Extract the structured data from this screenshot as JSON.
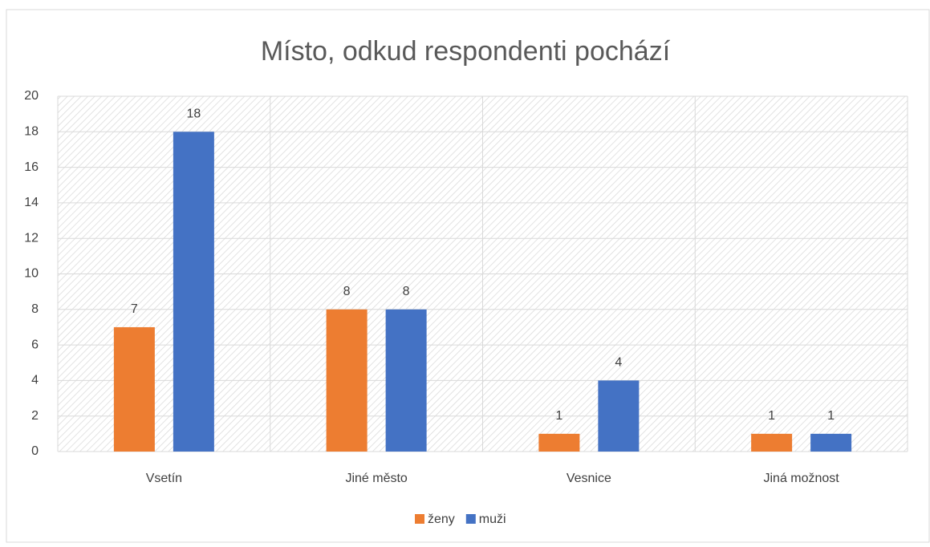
{
  "chart_data": {
    "type": "bar",
    "title": "Místo, odkud respondenti pochází",
    "categories": [
      "Vsetín",
      "Jiné město",
      "Vesnice",
      "Jiná možnost"
    ],
    "series": [
      {
        "name": "ženy",
        "color": "#ed7d31",
        "values": [
          7,
          8,
          1,
          1
        ]
      },
      {
        "name": "muži",
        "color": "#4472c4",
        "values": [
          18,
          8,
          4,
          1
        ]
      }
    ],
    "ylim": [
      0,
      20
    ],
    "yticks": [
      0,
      2,
      4,
      6,
      8,
      10,
      12,
      14,
      16,
      18,
      20
    ],
    "grid": true,
    "legend": "bottom",
    "data_labels": true
  }
}
